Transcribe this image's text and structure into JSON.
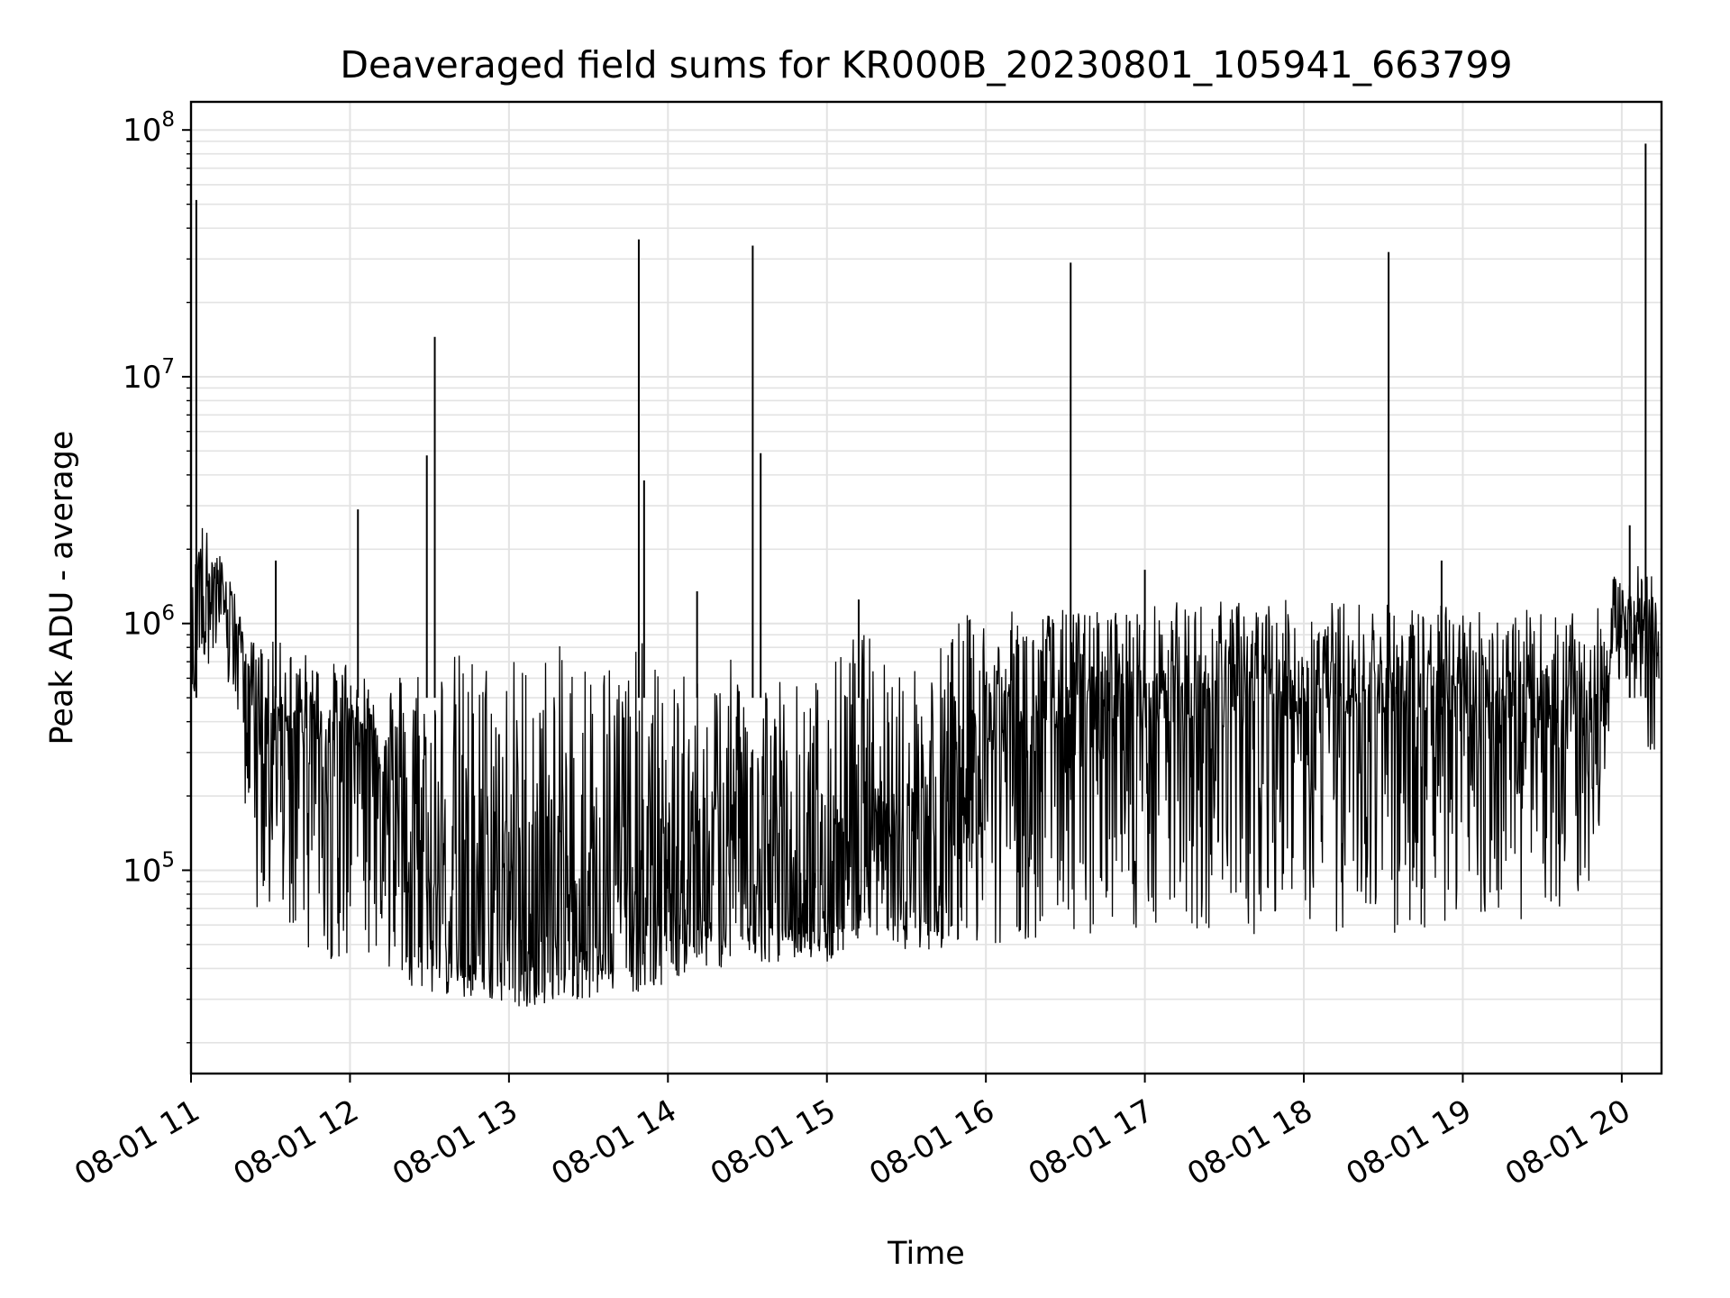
{
  "chart_data": {
    "type": "line",
    "title": "Deaveraged field sums for KR000B_20230801_105941_663799",
    "xlabel": "Time",
    "ylabel": "Peak ADU - average",
    "y_scale": "log",
    "ylim": [
      15000,
      130000000
    ],
    "xlim": [
      "08-01 11:00",
      "08-01 20:15"
    ],
    "x_tick_labels": [
      "08-01 11",
      "08-01 12",
      "08-01 13",
      "08-01 14",
      "08-01 15",
      "08-01 16",
      "08-01 17",
      "08-01 18",
      "08-01 19",
      "08-01 20"
    ],
    "y_tick_labels": [
      {
        "base": "10",
        "exp": "5"
      },
      {
        "base": "10",
        "exp": "6"
      },
      {
        "base": "10",
        "exp": "7"
      },
      {
        "base": "10",
        "exp": "8"
      }
    ],
    "grid": true,
    "line_color": "#000000",
    "grid_color": "#e3e3e3",
    "series": [
      {
        "x": [
          "08-01 11:00",
          "08-01 11:03",
          "08-01 11:06",
          "08-01 11:10",
          "08-01 11:15",
          "08-01 11:20",
          "08-01 11:25",
          "08-01 11:30",
          "08-01 11:35",
          "08-01 11:40",
          "08-01 11:45",
          "08-01 11:50",
          "08-01 11:55",
          "08-01 12:00",
          "08-01 12:05",
          "08-01 12:10",
          "08-01 12:15",
          "08-01 12:20",
          "08-01 12:25",
          "08-01 12:30",
          "08-01 12:40",
          "08-01 12:50",
          "08-01 13:00",
          "08-01 13:10",
          "08-01 13:20",
          "08-01 13:30",
          "08-01 13:40",
          "08-01 13:50",
          "08-01 14:00",
          "08-01 14:10",
          "08-01 14:20",
          "08-01 14:30",
          "08-01 14:40",
          "08-01 14:50",
          "08-01 15:00",
          "08-01 15:10",
          "08-01 15:20",
          "08-01 15:30",
          "08-01 15:40",
          "08-01 15:50",
          "08-01 16:00",
          "08-01 16:20",
          "08-01 16:40",
          "08-01 17:00",
          "08-01 17:20",
          "08-01 17:40",
          "08-01 18:00",
          "08-01 18:20",
          "08-01 18:40",
          "08-01 19:00",
          "08-01 19:20",
          "08-01 19:40",
          "08-01 19:50",
          "08-01 20:00",
          "08-01 20:10",
          "08-01 20:14"
        ],
        "y_median": [
          600000,
          1500000,
          1400000,
          1300000,
          1200000,
          700000,
          350000,
          400000,
          350000,
          350000,
          350000,
          300000,
          300000,
          350000,
          300000,
          250000,
          200000,
          150000,
          100000,
          60000,
          48000,
          44000,
          45000,
          47000,
          52000,
          55000,
          55000,
          55000,
          60000,
          65000,
          70000,
          75000,
          60000,
          55000,
          60000,
          75000,
          150000,
          80000,
          65000,
          150000,
          300000,
          350000,
          400000,
          400000,
          400000,
          420000,
          420000,
          420000,
          420000,
          400000,
          380000,
          350000,
          400000,
          900000,
          950000,
          800000
        ],
        "y_max": [
          1300000,
          2800000,
          2400000,
          2000000,
          1600000,
          900000,
          850000,
          850000,
          850000,
          800000,
          750000,
          700000,
          700000,
          750000,
          650000,
          650000,
          620000,
          700000,
          750000,
          800000,
          800000,
          800000,
          780000,
          800000,
          820000,
          820000,
          800000,
          850000,
          600000,
          650000,
          700000,
          750000,
          700000,
          600000,
          650000,
          950000,
          900000,
          800000,
          800000,
          1100000,
          1100000,
          1150000,
          1150000,
          1200000,
          1250000,
          1250000,
          1250000,
          1250000,
          1200000,
          1200000,
          1150000,
          1100000,
          1100000,
          1800000,
          1700000,
          1400000
        ],
        "y_min": [
          350000,
          700000,
          700000,
          600000,
          500000,
          200000,
          60000,
          60000,
          60000,
          50000,
          45000,
          45000,
          42000,
          45000,
          42000,
          40000,
          38000,
          36000,
          33000,
          32000,
          30000,
          30000,
          28000,
          28000,
          30000,
          30000,
          32000,
          32000,
          35000,
          40000,
          40000,
          42000,
          42000,
          45000,
          42000,
          50000,
          55000,
          45000,
          48000,
          45000,
          50000,
          52000,
          55000,
          55000,
          55000,
          55000,
          55000,
          55000,
          55000,
          60000,
          60000,
          65000,
          100000,
          650000,
          300000,
          300000
        ]
      }
    ],
    "spikes": [
      {
        "x": "08-01 11:02",
        "y": 52000000
      },
      {
        "x": "08-01 12:32",
        "y": 14500000
      },
      {
        "x": "08-01 12:29",
        "y": 4800000
      },
      {
        "x": "08-01 13:49",
        "y": 36000000
      },
      {
        "x": "08-01 13:51",
        "y": 3800000
      },
      {
        "x": "08-01 14:32",
        "y": 34000000
      },
      {
        "x": "08-01 14:35",
        "y": 4900000
      },
      {
        "x": "08-01 16:32",
        "y": 29000000
      },
      {
        "x": "08-01 18:32",
        "y": 32000000
      },
      {
        "x": "08-01 20:09",
        "y": 88000000
      },
      {
        "x": "08-01 12:03",
        "y": 2900000
      },
      {
        "x": "08-01 15:12",
        "y": 1250000
      },
      {
        "x": "08-01 17:00",
        "y": 1650000
      },
      {
        "x": "08-01 18:52",
        "y": 1800000
      },
      {
        "x": "08-01 20:03",
        "y": 2500000
      },
      {
        "x": "08-01 14:11",
        "y": 1350000
      },
      {
        "x": "08-01 11:32",
        "y": 1800000
      }
    ]
  }
}
